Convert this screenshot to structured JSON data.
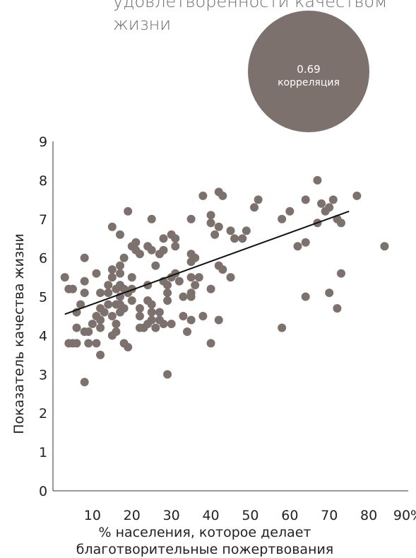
{
  "header": {
    "title_line1": "удовлетворенности качеством",
    "title_line2": "жизни"
  },
  "correlation": {
    "value": "0.69",
    "label": "корреляция"
  },
  "colors": {
    "dot": "#7d716d",
    "bubble": "#7d716d",
    "title": "#6f6a69",
    "line": "#111111"
  },
  "chart_data": {
    "type": "scatter",
    "xlabel": "% населения, которое делает благотворительные пожертвования",
    "xlabel_lines": [
      "% населения, которое делает",
      "благотворительные пожертвования"
    ],
    "ylabel": "Показатель качества жизни",
    "xlim": [
      0,
      90
    ],
    "ylim": [
      0,
      9
    ],
    "x_ticks": [
      10,
      20,
      30,
      40,
      50,
      60,
      70,
      80,
      90
    ],
    "x_tick_labels": [
      "10",
      "20",
      "30",
      "40",
      "50",
      "60",
      "70",
      "80",
      "90%"
    ],
    "y_ticks": [
      0,
      1,
      2,
      3,
      4,
      5,
      6,
      7,
      8,
      9
    ],
    "y_tick_labels": [
      "0",
      "1",
      "2",
      "3",
      "4",
      "5",
      "6",
      "7",
      "8",
      "9"
    ],
    "grid": false,
    "trendline": {
      "x": [
        3,
        75
      ],
      "y": [
        4.55,
        7.2
      ]
    },
    "points": [
      [
        3,
        5.5
      ],
      [
        4,
        5.2
      ],
      [
        4,
        3.8
      ],
      [
        5,
        3.8
      ],
      [
        5,
        5.2
      ],
      [
        6,
        4.6
      ],
      [
        6,
        4.2
      ],
      [
        6,
        3.8
      ],
      [
        7,
        4.8
      ],
      [
        8,
        6.0
      ],
      [
        8,
        5.4
      ],
      [
        8,
        5.1
      ],
      [
        8,
        4.1
      ],
      [
        8,
        2.8
      ],
      [
        9,
        4.1
      ],
      [
        9,
        3.8
      ],
      [
        10,
        4.3
      ],
      [
        11,
        5.6
      ],
      [
        11,
        4.5
      ],
      [
        11,
        3.8
      ],
      [
        12,
        5.1
      ],
      [
        12,
        4.7
      ],
      [
        12,
        4.4
      ],
      [
        12,
        4.2
      ],
      [
        12,
        3.5
      ],
      [
        13,
        4.6
      ],
      [
        14,
        5.3
      ],
      [
        14,
        4.8
      ],
      [
        14,
        5.1
      ],
      [
        15,
        6.8
      ],
      [
        15,
        5.7
      ],
      [
        15,
        5.5
      ],
      [
        15,
        4.5
      ],
      [
        15,
        4.0
      ],
      [
        16,
        5.2
      ],
      [
        16,
        4.8
      ],
      [
        16,
        4.3
      ],
      [
        16,
        4.1
      ],
      [
        17,
        6.6
      ],
      [
        17,
        5.8
      ],
      [
        17,
        5.6
      ],
      [
        17,
        5.3
      ],
      [
        17,
        5.0
      ],
      [
        17,
        4.8
      ],
      [
        17,
        4.6
      ],
      [
        18,
        6.0
      ],
      [
        18,
        5.2
      ],
      [
        18,
        4.7
      ],
      [
        18,
        3.8
      ],
      [
        19,
        7.2
      ],
      [
        19,
        5.1
      ],
      [
        19,
        3.7
      ],
      [
        20,
        6.3
      ],
      [
        20,
        5.5
      ],
      [
        20,
        5.2
      ],
      [
        20,
        4.9
      ],
      [
        21,
        6.4
      ],
      [
        21,
        6.2
      ],
      [
        22,
        6.1
      ],
      [
        22,
        4.7
      ],
      [
        22,
        4.5
      ],
      [
        22,
        4.2
      ],
      [
        23,
        4.2
      ],
      [
        24,
        6.3
      ],
      [
        24,
        5.3
      ],
      [
        24,
        4.9
      ],
      [
        24,
        4.3
      ],
      [
        25,
        7.0
      ],
      [
        25,
        6.2
      ],
      [
        25,
        4.8
      ],
      [
        25,
        4.6
      ],
      [
        25,
        4.4
      ],
      [
        26,
        5.8
      ],
      [
        26,
        4.2
      ],
      [
        27,
        6.1
      ],
      [
        27,
        4.6
      ],
      [
        27,
        4.4
      ],
      [
        28,
        6.5
      ],
      [
        28,
        6.2
      ],
      [
        28,
        5.4
      ],
      [
        28,
        4.3
      ],
      [
        29,
        5.3
      ],
      [
        29,
        5.1
      ],
      [
        29,
        4.9
      ],
      [
        29,
        3.0
      ],
      [
        30,
        6.6
      ],
      [
        30,
        5.5
      ],
      [
        30,
        4.3
      ],
      [
        31,
        6.5
      ],
      [
        31,
        6.3
      ],
      [
        31,
        5.6
      ],
      [
        32,
        5.4
      ],
      [
        33,
        5.0
      ],
      [
        33,
        4.5
      ],
      [
        34,
        4.1
      ],
      [
        35,
        7.0
      ],
      [
        35,
        6.1
      ],
      [
        35,
        5.9
      ],
      [
        35,
        5.5
      ],
      [
        35,
        5.1
      ],
      [
        35,
        5.0
      ],
      [
        35,
        4.4
      ],
      [
        36,
        6.0
      ],
      [
        36,
        5.3
      ],
      [
        37,
        5.5
      ],
      [
        38,
        7.6
      ],
      [
        38,
        4.5
      ],
      [
        40,
        7.1
      ],
      [
        40,
        6.9
      ],
      [
        40,
        5.2
      ],
      [
        40,
        3.8
      ],
      [
        41,
        6.6
      ],
      [
        42,
        7.7
      ],
      [
        42,
        6.8
      ],
      [
        42,
        5.8
      ],
      [
        42,
        4.4
      ],
      [
        43,
        7.6
      ],
      [
        43,
        5.7
      ],
      [
        45,
        6.7
      ],
      [
        45,
        5.5
      ],
      [
        46,
        6.5
      ],
      [
        48,
        6.5
      ],
      [
        49,
        6.7
      ],
      [
        51,
        7.3
      ],
      [
        52,
        7.5
      ],
      [
        58,
        7.0
      ],
      [
        58,
        4.2
      ],
      [
        60,
        7.2
      ],
      [
        62,
        6.3
      ],
      [
        64,
        7.5
      ],
      [
        64,
        6.4
      ],
      [
        64,
        5.0
      ],
      [
        67,
        8.0
      ],
      [
        67,
        6.9
      ],
      [
        68,
        7.4
      ],
      [
        69,
        7.2
      ],
      [
        70,
        7.3
      ],
      [
        70,
        5.1
      ],
      [
        71,
        7.5
      ],
      [
        72,
        7.0
      ],
      [
        72,
        4.7
      ],
      [
        73,
        6.9
      ],
      [
        73,
        5.6
      ],
      [
        77,
        7.6
      ],
      [
        84,
        6.3
      ]
    ]
  }
}
